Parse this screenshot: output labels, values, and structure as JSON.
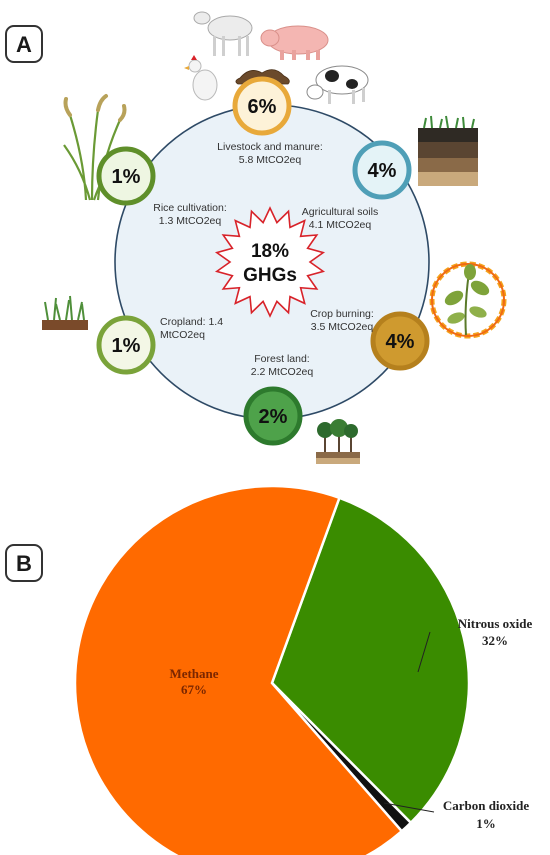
{
  "panel_a": {
    "label": "A",
    "center": {
      "line1": "18%",
      "line2": "GHGs"
    },
    "sources": [
      {
        "key": "livestock",
        "percent": "6%",
        "caption_line1": "Livestock and manure:",
        "caption_line2": "5.8 MtCO2eq",
        "ring_color": "#e8a93a",
        "fill_color": "#fdf2d8"
      },
      {
        "key": "soils",
        "percent": "4%",
        "caption_line1": "Agricultural soils",
        "caption_line2": "4.1 MtCO2eq",
        "ring_color": "#4f9fb7",
        "fill_color": "#e4f3f7"
      },
      {
        "key": "burning",
        "percent": "4%",
        "caption_line1": "Crop burning:",
        "caption_line2": "3.5 MtCO2eq",
        "ring_color": "#b5801d",
        "fill_color": "#cf9a2f"
      },
      {
        "key": "forest",
        "percent": "2%",
        "caption_line1": "Forest land:",
        "caption_line2": "2.2 MtCO2eq",
        "ring_color": "#2d7a2d",
        "fill_color": "#4ea24a"
      },
      {
        "key": "cropland",
        "percent": "1%",
        "caption_line1": "Cropland: 1.4",
        "caption_line2": "MtCO2eq",
        "ring_color": "#7aa33a",
        "fill_color": "#f3f7e6"
      },
      {
        "key": "rice",
        "percent": "1%",
        "caption_line1": "Rice cultivation:",
        "caption_line2": "1.3 MtCO2eq",
        "ring_color": "#5f8f2a",
        "fill_color": "#eef6e2"
      }
    ],
    "colors": {
      "circle_fill": "#eaf2f8",
      "circle_stroke": "#2e4a66",
      "star_stroke": "#d8232a"
    }
  },
  "panel_b": {
    "label": "B",
    "slice_labels": {
      "methane": {
        "name": "Methane",
        "pct": "67%"
      },
      "nitrous": {
        "name": "Nitrous oxide",
        "pct": "32%"
      },
      "co2": {
        "name": "Carbon dioxide",
        "pct": "1%"
      }
    }
  },
  "chart_data": {
    "type": "pie",
    "title": "",
    "slices": [
      {
        "name": "Nitrous oxide",
        "value": 32,
        "color": "#3a8c00"
      },
      {
        "name": "Carbon dioxide",
        "value": 1,
        "color": "#111111"
      },
      {
        "name": "Methane",
        "value": 67,
        "color": "#ff6a00"
      }
    ]
  }
}
